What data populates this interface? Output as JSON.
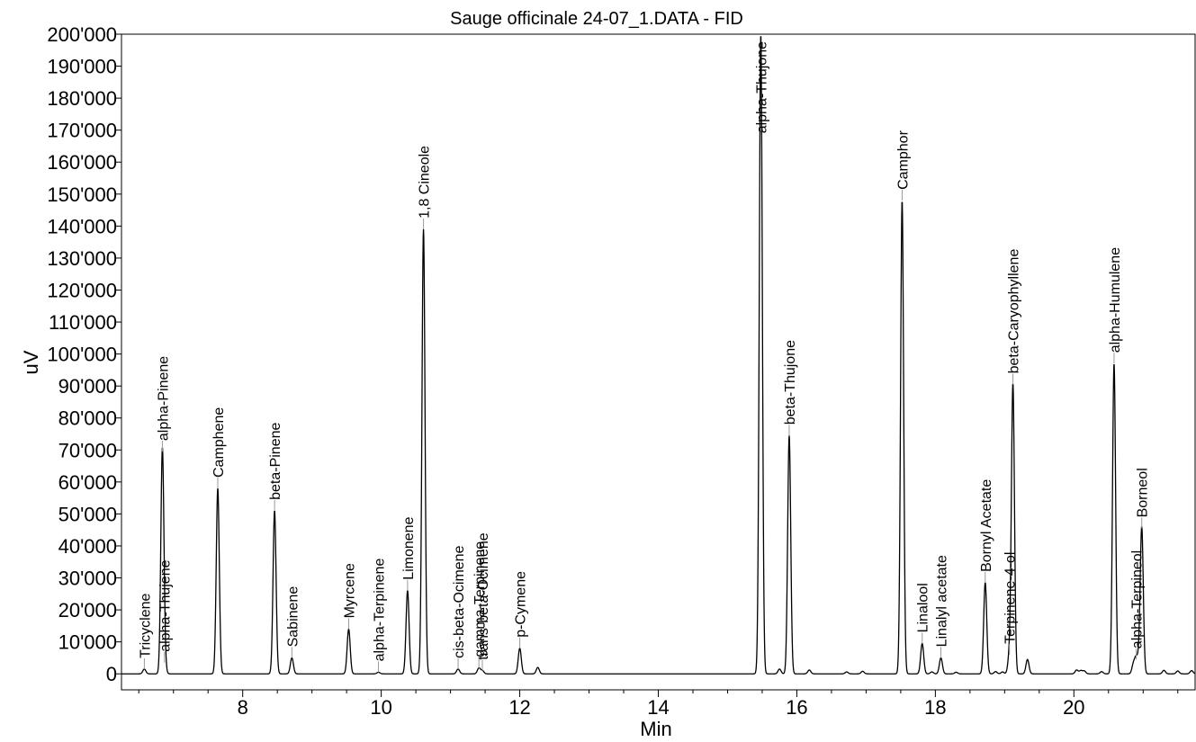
{
  "chart_data": {
    "type": "line",
    "title": "Sauge officinale 24-07_1.DATA - FID",
    "xlabel": "Min",
    "ylabel": "uV",
    "xlim": [
      6.25,
      21.75
    ],
    "ylim": [
      -5000,
      200000
    ],
    "x_ticks": [
      8,
      10,
      12,
      14,
      16,
      18,
      20
    ],
    "x_tick_labels": [
      "8",
      "10",
      "12",
      "14",
      "16",
      "18",
      "20"
    ],
    "y_ticks": [
      0,
      10000,
      20000,
      30000,
      40000,
      50000,
      60000,
      70000,
      80000,
      90000,
      100000,
      110000,
      120000,
      130000,
      140000,
      150000,
      160000,
      170000,
      180000,
      190000,
      200000
    ],
    "y_tick_labels": [
      "0",
      "10'000",
      "20'000",
      "30'000",
      "40'000",
      "50'000",
      "60'000",
      "70'000",
      "80'000",
      "90'000",
      "100'000",
      "110'000",
      "120'000",
      "130'000",
      "140'000",
      "150'000",
      "160'000",
      "170'000",
      "180'000",
      "190'000",
      "200'000"
    ],
    "grid": false,
    "line_color": "#000000",
    "series": [
      {
        "peaks": [
          {
            "label": "Tricyclene",
            "x": 6.58,
            "y": 1500
          },
          {
            "label": "alpha-Pinene",
            "x": 6.84,
            "y": 69500
          },
          {
            "label": "alpha-Thujene",
            "x": 6.87,
            "y": 3500
          },
          {
            "label": "Camphene",
            "x": 7.64,
            "y": 58000
          },
          {
            "label": "beta-Pinene",
            "x": 8.46,
            "y": 51000
          },
          {
            "label": "Sabinene",
            "x": 8.71,
            "y": 5000
          },
          {
            "label": "Myrcene",
            "x": 9.53,
            "y": 14000
          },
          {
            "label": "alpha-Terpinene",
            "x": 9.96,
            "y": 500
          },
          {
            "label": "Limonene",
            "x": 10.38,
            "y": 26000
          },
          {
            "label": "1,8 Cineole",
            "x": 10.61,
            "y": 139000
          },
          {
            "label": "cis-beta-Ocimene",
            "x": 11.11,
            "y": 1500
          },
          {
            "label": "gamma-Terpinene",
            "x": 11.41,
            "y": 1800
          },
          {
            "label": "trans-beta-Ocimene",
            "x": 11.46,
            "y": 1000
          },
          {
            "label": "p-Cymene",
            "x": 12.0,
            "y": 8000
          },
          {
            "label": "alpha-Thujone",
            "x": 15.48,
            "y": 200000
          },
          {
            "label": "beta-Thujone",
            "x": 15.89,
            "y": 74500
          },
          {
            "label": "Camphor",
            "x": 17.52,
            "y": 148000
          },
          {
            "label": "Linalool",
            "x": 17.81,
            "y": 9500
          },
          {
            "label": "Linalyl acetate",
            "x": 18.08,
            "y": 5000
          },
          {
            "label": "Bornyl Acetate",
            "x": 18.72,
            "y": 28500
          },
          {
            "label": "Terpinene-4-ol",
            "x": 19.07,
            "y": 6000
          },
          {
            "label": "beta-Caryophyllene",
            "x": 19.12,
            "y": 90500
          },
          {
            "label": "alpha-Humulene",
            "x": 20.58,
            "y": 97000
          },
          {
            "label": "alpha-Terpineol",
            "x": 20.9,
            "y": 4500
          },
          {
            "label": "Borneol",
            "x": 20.98,
            "y": 45500
          }
        ],
        "minor_peaks": [
          {
            "x": 12.26,
            "y": 2000
          },
          {
            "x": 15.75,
            "y": 1500
          },
          {
            "x": 16.18,
            "y": 1200
          },
          {
            "x": 16.72,
            "y": 600
          },
          {
            "x": 16.95,
            "y": 800
          },
          {
            "x": 17.95,
            "y": 600
          },
          {
            "x": 18.3,
            "y": 500
          },
          {
            "x": 18.87,
            "y": 700
          },
          {
            "x": 18.97,
            "y": 600
          },
          {
            "x": 19.33,
            "y": 4500
          },
          {
            "x": 20.04,
            "y": 1200
          },
          {
            "x": 20.1,
            "y": 1000
          },
          {
            "x": 20.15,
            "y": 900
          },
          {
            "x": 20.4,
            "y": 700
          },
          {
            "x": 20.86,
            "y": 3000
          },
          {
            "x": 20.94,
            "y": 3500
          },
          {
            "x": 21.3,
            "y": 1100
          },
          {
            "x": 21.5,
            "y": 900
          },
          {
            "x": 21.7,
            "y": 1000
          }
        ]
      }
    ]
  }
}
